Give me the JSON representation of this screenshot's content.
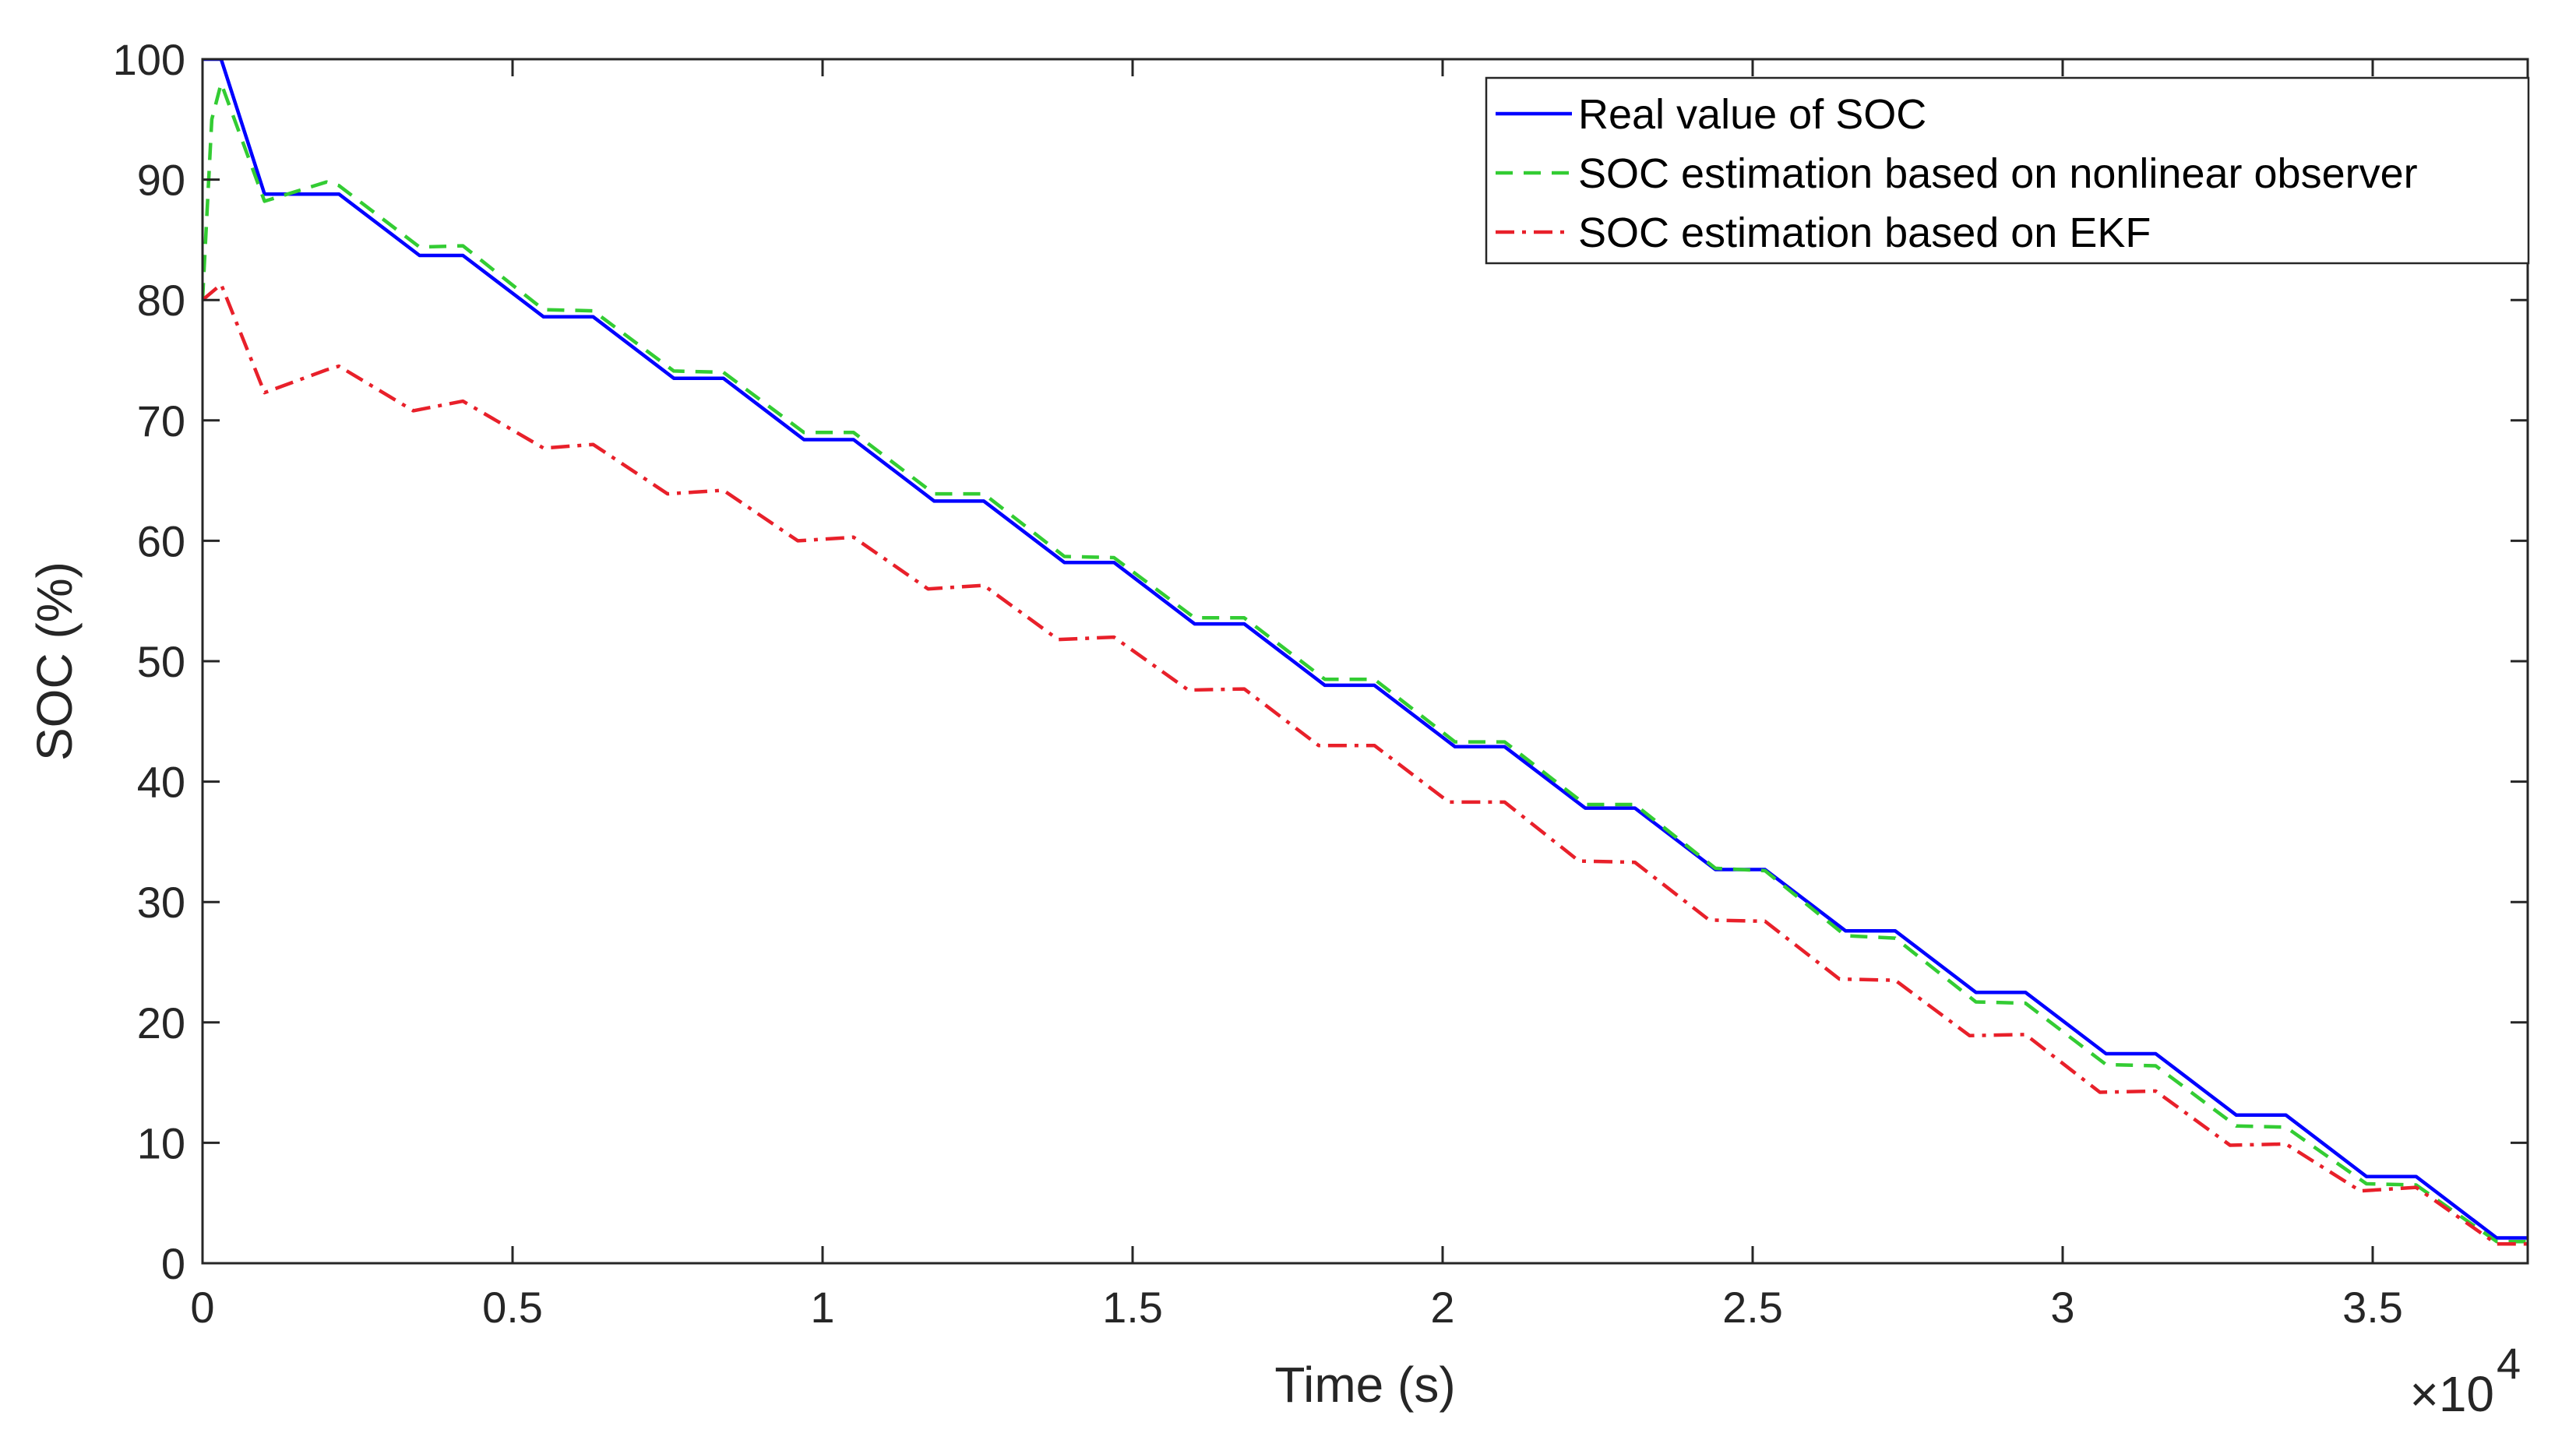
{
  "chart_data": {
    "type": "line",
    "title": "",
    "xlabel": "Time (s)",
    "ylabel": "SOC (%)",
    "x_multiplier_label": "×10",
    "x_multiplier_exponent": "4",
    "xlim": [
      0,
      3.75
    ],
    "ylim": [
      0,
      100
    ],
    "x_ticks": [
      0,
      0.5,
      1,
      1.5,
      2,
      2.5,
      3,
      3.5
    ],
    "x_tick_labels": [
      "0",
      "0.5",
      "1",
      "1.5",
      "2",
      "2.5",
      "3",
      "3.5"
    ],
    "y_ticks": [
      0,
      10,
      20,
      30,
      40,
      50,
      60,
      70,
      80,
      90,
      100
    ],
    "y_tick_labels": [
      "0",
      "10",
      "20",
      "30",
      "40",
      "50",
      "60",
      "70",
      "80",
      "90",
      "100"
    ],
    "grid": false,
    "legend_position": "top-right",
    "series": [
      {
        "name": "Real value of SOC",
        "color": "#0000ff",
        "style": "solid",
        "points": [
          [
            0,
            100
          ],
          [
            0.03,
            100
          ],
          [
            0.1,
            88.8
          ],
          [
            0.22,
            88.8
          ],
          [
            0.35,
            83.7
          ],
          [
            0.42,
            83.7
          ],
          [
            0.55,
            78.6
          ],
          [
            0.63,
            78.6
          ],
          [
            0.76,
            73.5
          ],
          [
            0.84,
            73.5
          ],
          [
            0.97,
            68.4
          ],
          [
            1.05,
            68.4
          ],
          [
            1.18,
            63.3
          ],
          [
            1.26,
            63.3
          ],
          [
            1.39,
            58.2
          ],
          [
            1.47,
            58.2
          ],
          [
            1.6,
            53.1
          ],
          [
            1.68,
            53.1
          ],
          [
            1.81,
            48.0
          ],
          [
            1.89,
            48.0
          ],
          [
            2.02,
            42.9
          ],
          [
            2.1,
            42.9
          ],
          [
            2.23,
            37.8
          ],
          [
            2.31,
            37.8
          ],
          [
            2.44,
            32.7
          ],
          [
            2.52,
            32.7
          ],
          [
            2.65,
            27.6
          ],
          [
            2.73,
            27.6
          ],
          [
            2.86,
            22.5
          ],
          [
            2.94,
            22.5
          ],
          [
            3.07,
            17.4
          ],
          [
            3.15,
            17.4
          ],
          [
            3.28,
            12.3
          ],
          [
            3.36,
            12.3
          ],
          [
            3.49,
            7.2
          ],
          [
            3.57,
            7.2
          ],
          [
            3.7,
            2.1
          ],
          [
            3.75,
            2.1
          ]
        ]
      },
      {
        "name": "SOC estimation based on nonlinear observer",
        "color": "#33cc33",
        "style": "dashed",
        "points": [
          [
            0,
            80
          ],
          [
            0.015,
            95
          ],
          [
            0.03,
            98
          ],
          [
            0.1,
            88.2
          ],
          [
            0.2,
            89.8
          ],
          [
            0.22,
            89.5
          ],
          [
            0.35,
            84.4
          ],
          [
            0.42,
            84.5
          ],
          [
            0.55,
            79.2
          ],
          [
            0.63,
            79.1
          ],
          [
            0.76,
            74.1
          ],
          [
            0.84,
            74.0
          ],
          [
            0.97,
            69.0
          ],
          [
            1.05,
            69.0
          ],
          [
            1.18,
            63.9
          ],
          [
            1.26,
            63.9
          ],
          [
            1.39,
            58.7
          ],
          [
            1.47,
            58.6
          ],
          [
            1.6,
            53.6
          ],
          [
            1.68,
            53.6
          ],
          [
            1.81,
            48.5
          ],
          [
            1.89,
            48.5
          ],
          [
            2.02,
            43.3
          ],
          [
            2.1,
            43.3
          ],
          [
            2.23,
            38.1
          ],
          [
            2.31,
            38.1
          ],
          [
            2.44,
            32.8
          ],
          [
            2.52,
            32.6
          ],
          [
            2.65,
            27.2
          ],
          [
            2.73,
            27.0
          ],
          [
            2.86,
            21.7
          ],
          [
            2.94,
            21.6
          ],
          [
            3.07,
            16.5
          ],
          [
            3.15,
            16.4
          ],
          [
            3.28,
            11.4
          ],
          [
            3.36,
            11.3
          ],
          [
            3.49,
            6.6
          ],
          [
            3.57,
            6.5
          ],
          [
            3.7,
            1.8
          ],
          [
            3.75,
            1.8
          ]
        ]
      },
      {
        "name": "SOC estimation based on EKF",
        "color": "#e8202a",
        "style": "dashdot",
        "points": [
          [
            0,
            80
          ],
          [
            0.03,
            81.3
          ],
          [
            0.1,
            72.3
          ],
          [
            0.2,
            74.2
          ],
          [
            0.22,
            74.5
          ],
          [
            0.34,
            70.8
          ],
          [
            0.42,
            71.6
          ],
          [
            0.55,
            67.7
          ],
          [
            0.63,
            68.0
          ],
          [
            0.75,
            63.9
          ],
          [
            0.84,
            64.2
          ],
          [
            0.96,
            60.0
          ],
          [
            1.05,
            60.3
          ],
          [
            1.17,
            56.0
          ],
          [
            1.26,
            56.3
          ],
          [
            1.38,
            51.8
          ],
          [
            1.47,
            52.0
          ],
          [
            1.59,
            47.6
          ],
          [
            1.68,
            47.7
          ],
          [
            1.8,
            43.0
          ],
          [
            1.89,
            43.0
          ],
          [
            2.01,
            38.3
          ],
          [
            2.1,
            38.3
          ],
          [
            2.22,
            33.4
          ],
          [
            2.31,
            33.3
          ],
          [
            2.43,
            28.5
          ],
          [
            2.52,
            28.4
          ],
          [
            2.64,
            23.6
          ],
          [
            2.73,
            23.5
          ],
          [
            2.85,
            18.9
          ],
          [
            2.94,
            19.0
          ],
          [
            3.06,
            14.2
          ],
          [
            3.15,
            14.3
          ],
          [
            3.27,
            9.8
          ],
          [
            3.36,
            9.9
          ],
          [
            3.48,
            6.0
          ],
          [
            3.57,
            6.3
          ],
          [
            3.7,
            1.6
          ],
          [
            3.75,
            1.6
          ]
        ]
      }
    ]
  }
}
